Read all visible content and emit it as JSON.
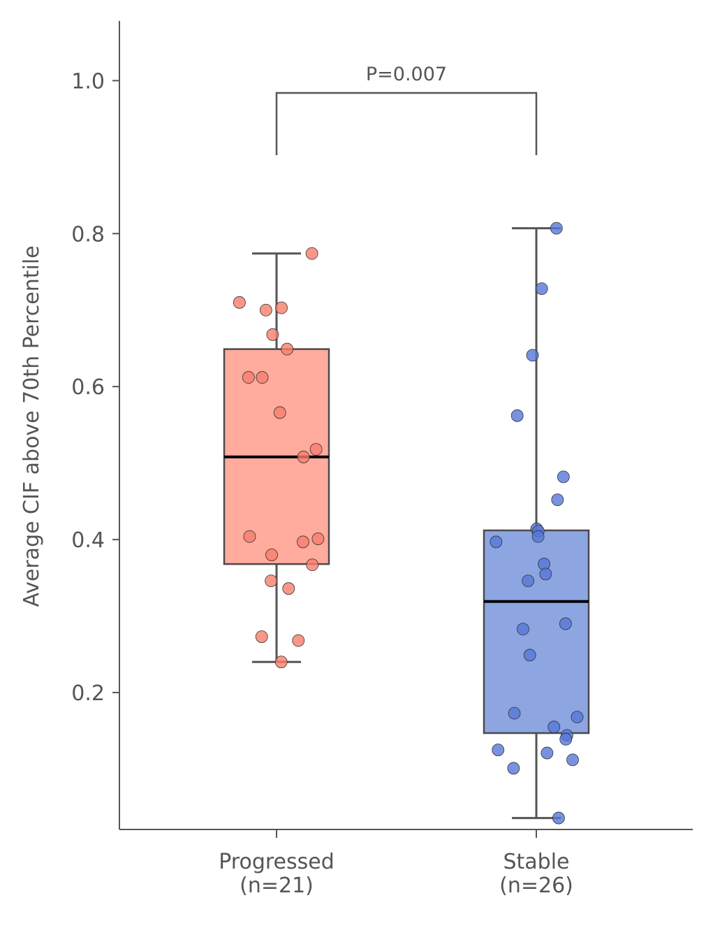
{
  "chart_data": {
    "type": "box",
    "ylabel": "Average CIF above 70th Percentile",
    "annotation": "P=0.007",
    "categories": [
      [
        "Progressed",
        "(n=21)"
      ],
      [
        "Stable",
        "(n=26)"
      ]
    ],
    "ylim": [
      0.021,
      1.078
    ],
    "yticks": [
      0.2,
      0.4,
      0.6,
      0.8,
      {
        "value": 1,
        "label": "1.0"
      }
    ],
    "boxes": [
      {
        "color": "#ffab9e",
        "point_color": "#f87d6b",
        "whislo": 0.24,
        "q1": 0.368,
        "median": 0.508,
        "q3": 0.649,
        "whishi": 0.774,
        "points": [
          0.774,
          0.71,
          0.703,
          0.7,
          0.668,
          0.649,
          0.612,
          0.612,
          0.566,
          0.518,
          0.508,
          0.404,
          0.401,
          0.397,
          0.38,
          0.367,
          0.346,
          0.336,
          0.273,
          0.268,
          0.24
        ]
      },
      {
        "color": "#8da6e2",
        "point_color": "#5677d8",
        "whislo": 0.036,
        "q1": 0.147,
        "median": 0.319,
        "q3": 0.412,
        "whishi": 0.807,
        "points": [
          0.807,
          0.728,
          0.641,
          0.562,
          0.482,
          0.452,
          0.414,
          0.411,
          0.404,
          0.397,
          0.368,
          0.355,
          0.346,
          0.29,
          0.283,
          0.249,
          0.173,
          0.168,
          0.155,
          0.144,
          0.139,
          0.125,
          0.121,
          0.112,
          0.101,
          0.036
        ]
      }
    ]
  }
}
